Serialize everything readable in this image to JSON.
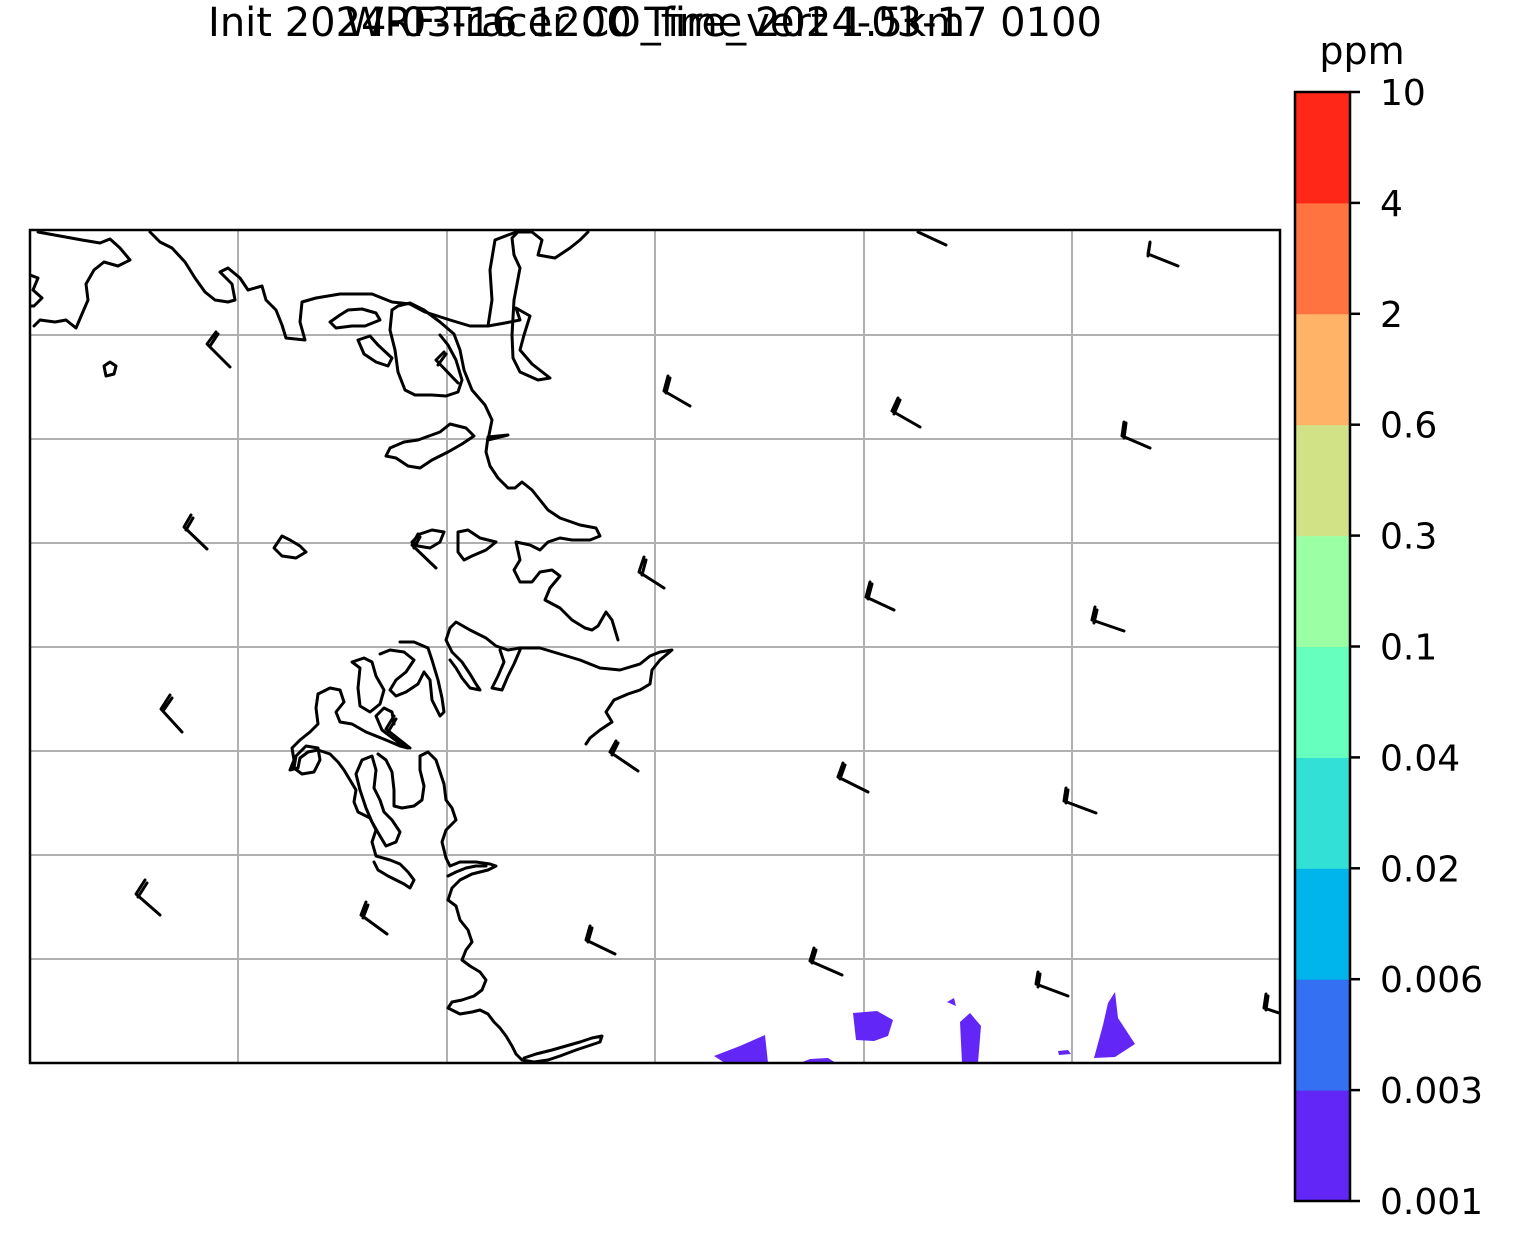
{
  "title": {
    "line1": "WRF-Tracer CO_fire_vert 1.5km",
    "line2": "Init 2024-03-16 1200 Time 2024-03-17 0100"
  },
  "colorbar": {
    "unit": "ppm",
    "levels": [
      "0.001",
      "0.003",
      "0.006",
      "0.02",
      "0.04",
      "0.1",
      "0.3",
      "0.6",
      "2",
      "4",
      "10"
    ],
    "colors": [
      "#6226f7",
      "#3471f2",
      "#00b4ec",
      "#33e0d6",
      "#66ffbd",
      "#9bffa3",
      "#d1e186",
      "#feb366",
      "#ff7340",
      "#ff2718"
    ]
  },
  "map": {
    "gridlines": true,
    "coastline_color": "#000000",
    "grid_color": "#b0b0b0",
    "tracer_fill_color": "#6226f7"
  }
}
